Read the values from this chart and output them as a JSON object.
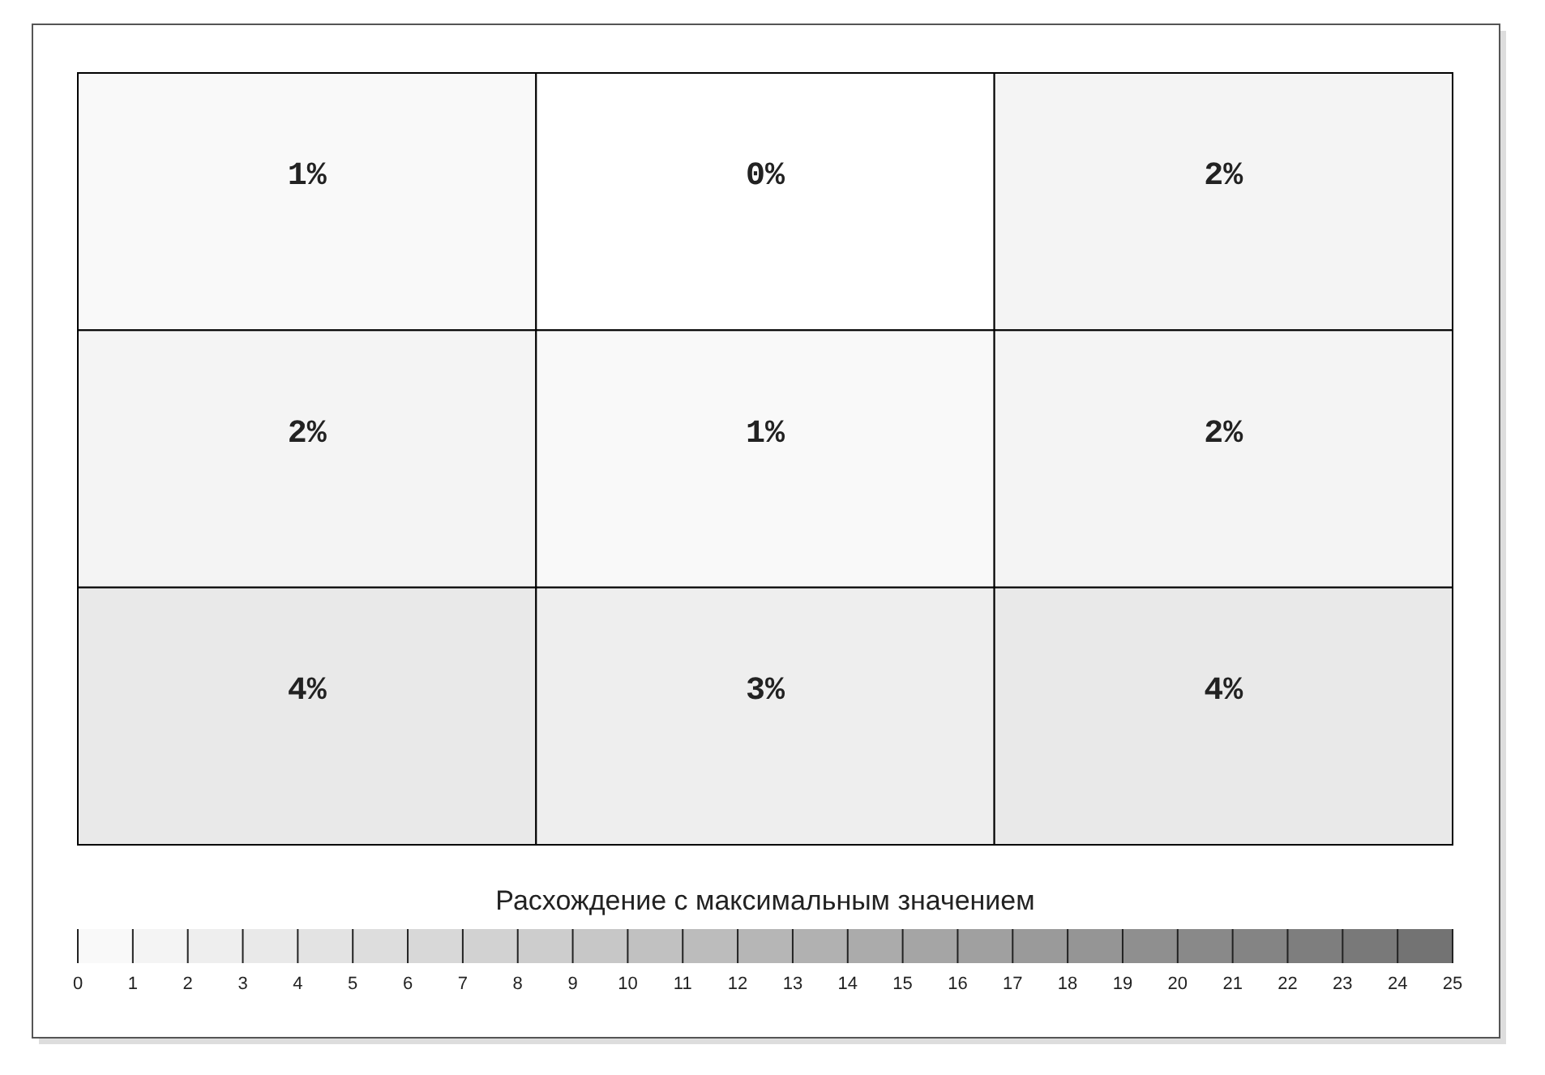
{
  "chart_data": {
    "type": "heatmap",
    "clabel": "Расхождение с максимальным значением",
    "categories": [
      null,
      null,
      null
    ],
    "y_categories": [
      null,
      null,
      null
    ],
    "cells": [
      [
        1,
        0,
        2
      ],
      [
        2,
        1,
        2
      ],
      [
        4,
        3,
        4
      ]
    ],
    "cell_labels": [
      [
        "1%",
        "0%",
        "2%"
      ],
      [
        "2%",
        "1%",
        "2%"
      ],
      [
        "4%",
        "3%",
        "4%"
      ]
    ],
    "clim": [
      0,
      25
    ],
    "cticks": [
      0,
      1,
      2,
      3,
      4,
      5,
      6,
      7,
      8,
      9,
      10,
      11,
      12,
      13,
      14,
      15,
      16,
      17,
      18,
      19,
      20,
      21,
      22,
      23,
      24,
      25
    ]
  }
}
